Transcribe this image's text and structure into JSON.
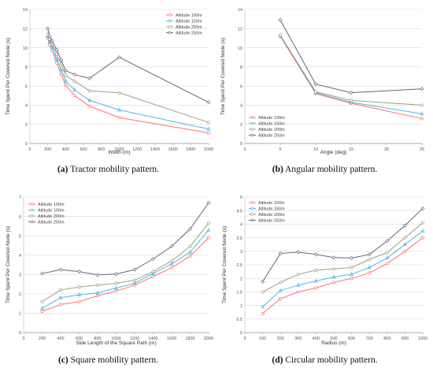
{
  "chart_data": [
    {
      "type": "line",
      "caption_letter": "(a)",
      "caption_text": "Tractor mobility pattern.",
      "xlabel": "Width (m)",
      "ylabel": "Time Spent Per Covered Node (s)",
      "xlim": [
        0,
        2000
      ],
      "ylim": [
        0,
        14
      ],
      "xticks": [
        0,
        200,
        400,
        600,
        800,
        1000,
        1200,
        1400,
        1600,
        1800,
        2000
      ],
      "yticks": [
        0,
        2,
        4,
        6,
        8,
        10,
        12,
        14
      ],
      "grid": true,
      "legend_position": "top-right",
      "x": [
        200,
        220,
        250,
        300,
        350,
        400,
        500,
        667,
        1000,
        2000
      ],
      "series": [
        {
          "name": "Altitude 100m",
          "color": "#ff6f6f",
          "marker": "circle",
          "values": [
            11.0,
            10.3,
            9.7,
            8.4,
            7.2,
            6.1,
            5.0,
            3.9,
            2.7,
            1.1
          ]
        },
        {
          "name": "Altitude 150m",
          "color": "#4fb8e6",
          "marker": "triangle",
          "values": [
            11.2,
            10.6,
            10.0,
            8.8,
            7.7,
            6.5,
            5.6,
            4.5,
            3.5,
            1.5
          ]
        },
        {
          "name": "Altitude 200m",
          "color": "#9aa082",
          "marker": "circle",
          "values": [
            11.4,
            10.9,
            10.4,
            9.3,
            8.3,
            7.1,
            6.5,
            5.5,
            5.3,
            2.2
          ]
        },
        {
          "name": "Altitude 250m",
          "color": "#666677",
          "marker": "diamond",
          "values": [
            12.0,
            11.2,
            10.7,
            9.8,
            8.7,
            7.6,
            7.2,
            6.8,
            9.0,
            4.3
          ]
        }
      ]
    },
    {
      "type": "line",
      "caption_letter": "(b)",
      "caption_text": "Angular mobility pattern.",
      "xlabel": "Angle (deg)",
      "ylabel": "Time Spent Per Covered Node (s)",
      "xlim": [
        0,
        25
      ],
      "ylim": [
        0,
        14
      ],
      "xticks": [
        0,
        5,
        10,
        15,
        20,
        25
      ],
      "yticks": [
        0,
        2,
        4,
        6,
        8,
        10,
        12,
        14
      ],
      "grid": true,
      "legend_position": "bottom-left",
      "x": [
        5,
        10,
        15,
        25
      ],
      "series": [
        {
          "name": "Altitude 100m",
          "color": "#ff6f6f",
          "marker": "circle",
          "values": [
            11.2,
            5.2,
            4.2,
            2.6
          ]
        },
        {
          "name": "Altitude 150m",
          "color": "#4fb8e6",
          "marker": "triangle",
          "values": [
            11.3,
            5.3,
            4.3,
            3.1
          ]
        },
        {
          "name": "Altitude 200m",
          "color": "#9aa082",
          "marker": "circle",
          "values": [
            11.3,
            5.4,
            4.5,
            4.0
          ]
        },
        {
          "name": "Altitude 250m",
          "color": "#666677",
          "marker": "diamond",
          "values": [
            12.9,
            6.2,
            5.3,
            5.7
          ]
        }
      ]
    },
    {
      "type": "line",
      "caption_letter": "(c)",
      "caption_text": "Square mobility pattern.",
      "xlabel": "Side Length of the Square Path (m)",
      "ylabel": "Time Spent Per Covered Node (s)",
      "xlim": [
        0,
        2000
      ],
      "ylim": [
        0,
        7
      ],
      "xticks": [
        0,
        200,
        400,
        600,
        800,
        1000,
        1200,
        1400,
        1600,
        1800,
        2000
      ],
      "yticks": [
        0,
        1,
        2,
        3,
        4,
        5,
        6,
        7
      ],
      "grid": true,
      "legend_position": "top-left",
      "x": [
        200,
        400,
        600,
        800,
        1000,
        1200,
        1400,
        1600,
        1800,
        2000
      ],
      "series": [
        {
          "name": "Altitude 100m",
          "color": "#ff6f6f",
          "marker": "circle",
          "values": [
            1.1,
            1.45,
            1.6,
            1.9,
            2.15,
            2.45,
            2.9,
            3.35,
            3.95,
            4.9
          ]
        },
        {
          "name": "Altitude 150m",
          "color": "#4fb8e6",
          "marker": "triangle",
          "values": [
            1.25,
            1.8,
            1.95,
            2.05,
            2.3,
            2.55,
            3.05,
            3.55,
            4.15,
            5.3
          ]
        },
        {
          "name": "Altitude 200m",
          "color": "#9aa082",
          "marker": "circle",
          "values": [
            1.6,
            2.2,
            2.35,
            2.45,
            2.55,
            2.7,
            3.15,
            3.7,
            4.45,
            5.65
          ]
        },
        {
          "name": "Altitude 250m",
          "color": "#666677",
          "marker": "diamond",
          "values": [
            3.05,
            3.25,
            3.15,
            2.98,
            3.02,
            3.25,
            3.8,
            4.45,
            5.35,
            6.7
          ]
        }
      ]
    },
    {
      "type": "line",
      "caption_letter": "(d)",
      "caption_text": "Circular mobility pattern.",
      "xlabel": "Radius (m)",
      "ylabel": "Time Spent Per Covered Node (s)",
      "xlim": [
        0,
        1000
      ],
      "ylim": [
        0,
        5
      ],
      "xticks": [
        0,
        100,
        200,
        300,
        400,
        500,
        600,
        700,
        800,
        900,
        1000
      ],
      "yticks": [
        0,
        0.5,
        1,
        1.5,
        2,
        2.5,
        3,
        3.5,
        4,
        4.5,
        5
      ],
      "grid": true,
      "legend_position": "top-left",
      "x": [
        100,
        200,
        300,
        400,
        500,
        600,
        700,
        800,
        900,
        1000
      ],
      "series": [
        {
          "name": "Altitude 100m",
          "color": "#ff6f6f",
          "marker": "circle",
          "values": [
            0.7,
            1.25,
            1.5,
            1.65,
            1.85,
            2.0,
            2.2,
            2.55,
            3.0,
            3.5
          ]
        },
        {
          "name": "Altitude 150m",
          "color": "#4fb8e6",
          "marker": "triangle",
          "values": [
            0.95,
            1.55,
            1.75,
            1.9,
            2.05,
            2.15,
            2.4,
            2.75,
            3.25,
            3.75
          ]
        },
        {
          "name": "Altitude 200m",
          "color": "#9aa082",
          "marker": "circle",
          "values": [
            1.5,
            1.85,
            2.15,
            2.3,
            2.35,
            2.4,
            2.7,
            2.95,
            3.5,
            4.05
          ]
        },
        {
          "name": "Altitude 250m",
          "color": "#666677",
          "marker": "diamond",
          "values": [
            1.88,
            2.92,
            2.97,
            2.88,
            2.77,
            2.75,
            2.88,
            3.38,
            3.95,
            4.58
          ]
        }
      ]
    }
  ]
}
